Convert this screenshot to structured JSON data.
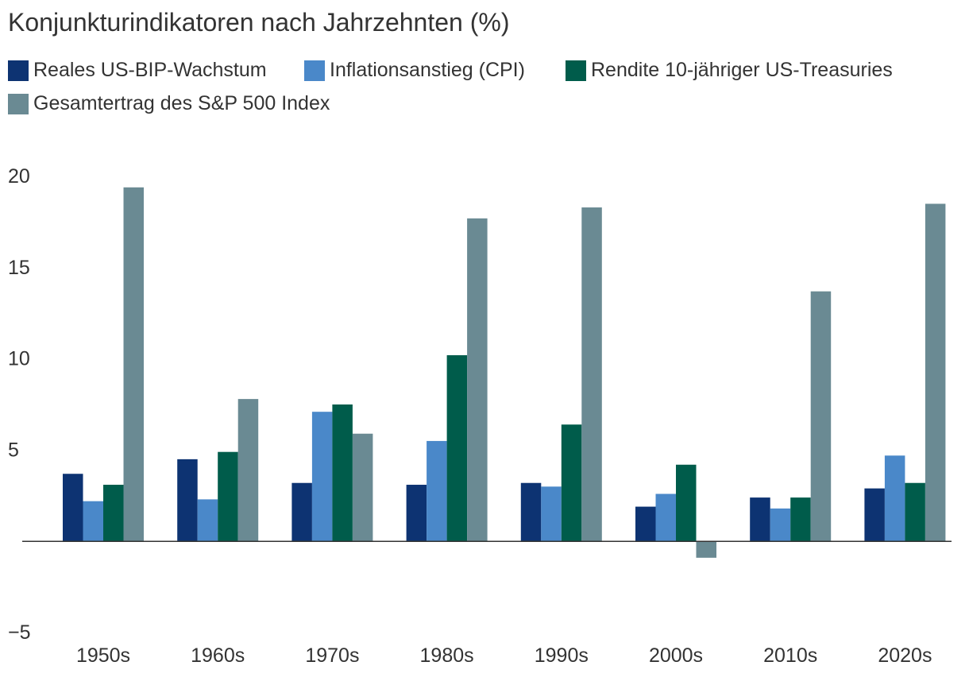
{
  "chart_data": {
    "type": "bar",
    "title": "Konjunkturindikatoren nach Jahrzehnten (%)",
    "categories": [
      "1950s",
      "1960s",
      "1970s",
      "1980s",
      "1990s",
      "2000s",
      "2010s",
      "2020s"
    ],
    "series": [
      {
        "name": "Reales US-BIP-Wachstum",
        "color": "#0d3372",
        "values": [
          3.7,
          4.5,
          3.2,
          3.1,
          3.2,
          1.9,
          2.4,
          2.9
        ]
      },
      {
        "name": "Inflationsanstieg (CPI)",
        "color": "#4a88c9",
        "values": [
          2.2,
          2.3,
          7.1,
          5.5,
          3.0,
          2.6,
          1.8,
          4.7
        ]
      },
      {
        "name": "Rendite 10-jähriger US-Treasuries",
        "color": "#005c4b",
        "values": [
          3.1,
          4.9,
          7.5,
          10.2,
          6.4,
          4.2,
          2.4,
          3.2
        ]
      },
      {
        "name": "Gesamtertrag des S&P 500 Index",
        "color": "#6a8a93",
        "values": [
          19.4,
          7.8,
          5.9,
          17.7,
          18.3,
          -0.9,
          13.7,
          18.5
        ]
      }
    ],
    "yticks": [
      "20",
      "15",
      "10",
      "5",
      "−5"
    ],
    "ylim": [
      -5,
      20
    ],
    "legend_position": "top-left"
  }
}
